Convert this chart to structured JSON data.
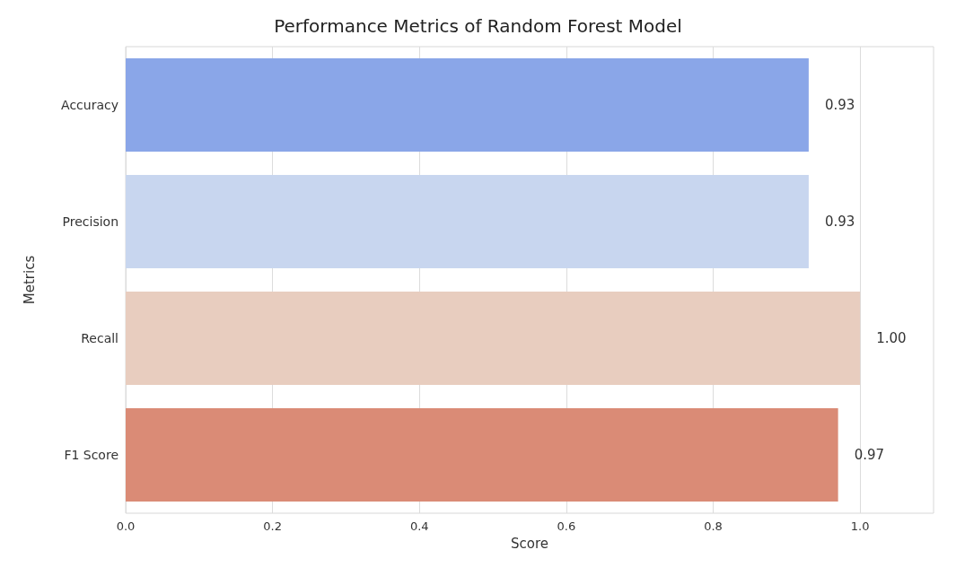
{
  "chart_data": {
    "type": "bar",
    "orientation": "horizontal",
    "title": "Performance Metrics of Random Forest Model",
    "xlabel": "Score",
    "ylabel": "Metrics",
    "categories": [
      "Accuracy",
      "Precision",
      "Recall",
      "F1 Score"
    ],
    "values": [
      0.93,
      0.93,
      1.0,
      0.97
    ],
    "colors": [
      "#8aa6e8",
      "#c8d6ef",
      "#e8cdbf",
      "#da8b76"
    ],
    "value_labels": [
      "0.93",
      "0.93",
      "1.00",
      "0.97"
    ],
    "xlim": [
      0,
      1.1
    ],
    "xticks": [
      {
        "value": 0,
        "label": "0.0"
      },
      {
        "value": 0.2,
        "label": "0.2"
      },
      {
        "value": 0.4,
        "label": "0.4"
      },
      {
        "value": 0.6,
        "label": "0.6"
      },
      {
        "value": 0.8,
        "label": "0.8"
      },
      {
        "value": 1.0,
        "label": "1.0"
      }
    ],
    "grid": "x"
  }
}
